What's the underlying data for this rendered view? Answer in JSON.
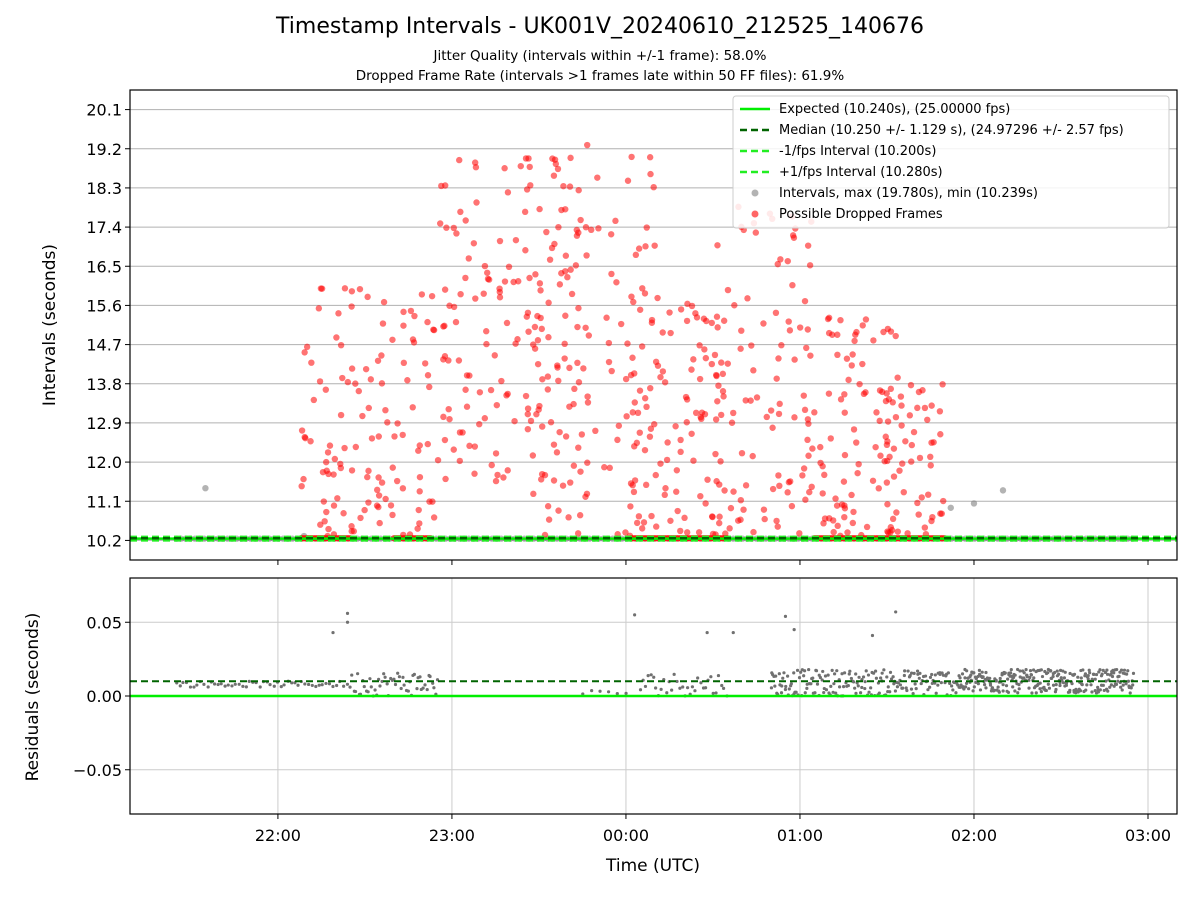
{
  "title": "Timestamp Intervals - UK001V_20240610_212525_140676",
  "subtitle_1": "Jitter Quality (intervals within +/-1 frame): 58.0%",
  "subtitle_2": "Dropped Frame Rate (intervals >1 frames late within 50 FF files): 61.9%",
  "colors": {
    "expected": "#00ee00",
    "median": "#006400",
    "interval_band": "#22ee22",
    "intervals": "#808080",
    "dropped": "#ff0000",
    "grid": "#b0b0b0"
  },
  "chart_data": [
    {
      "type": "scatter",
      "name": "intervals-panel",
      "ylabel": "Intervals (seconds)",
      "y_ticks": [
        "10.2",
        "11.1",
        "12.0",
        "12.9",
        "13.8",
        "14.7",
        "15.6",
        "16.5",
        "17.4",
        "18.3",
        "19.2",
        "20.1"
      ],
      "ylim": [
        9.75,
        20.55
      ],
      "xlim": [
        "21:09",
        "03:10"
      ],
      "grid": true,
      "legend_position": "top-right",
      "lines": [
        {
          "name": "Expected (10.240s), (25.00000 fps)",
          "y": 10.24,
          "style": "solid"
        },
        {
          "name": "Median (10.250 +/- 1.129 s), (24.97296 +/- 2.57 fps)",
          "y": 10.25,
          "style": "dashed"
        },
        {
          "name": "-1/fps Interval (10.200s)",
          "y": 10.2,
          "style": "dashed"
        },
        {
          "name": "+1/fps Interval (10.280s)",
          "y": 10.28,
          "style": "dashed"
        }
      ],
      "scatter_series": [
        {
          "name": "Intervals, max (19.780s), min (10.239s)",
          "x_range": [
            "21:25",
            "02:55"
          ],
          "y": 10.24,
          "outliers": [
            {
              "x": "21:35",
              "y": 11.4
            },
            {
              "x": "22:09",
              "y": 10.3
            },
            {
              "x": "01:52",
              "y": 10.95
            },
            {
              "x": "02:00",
              "y": 11.05
            },
            {
              "x": "02:10",
              "y": 11.35
            }
          ]
        },
        {
          "name": "Possible Dropped Frames",
          "clusters": [
            {
              "x_range": [
                "22:08",
                "22:54"
              ],
              "y_range": [
                10.3,
                16.0
              ]
            },
            {
              "x_range": [
                "22:55",
                "23:44"
              ],
              "y_range": [
                11.5,
                19.0
              ]
            },
            {
              "x_range": [
                "23:25",
                "00:10"
              ],
              "y_range": [
                10.3,
                19.4
              ]
            },
            {
              "x_range": [
                "00:01",
                "00:35"
              ],
              "y_range": [
                10.3,
                16.0
              ]
            },
            {
              "x_range": [
                "00:30",
                "01:05"
              ],
              "y_range": [
                10.3,
                17.9
              ]
            },
            {
              "x_range": [
                "01:00",
                "01:35"
              ],
              "y_range": [
                10.3,
                15.5
              ]
            },
            {
              "x_range": [
                "01:30",
                "01:50"
              ],
              "y_range": [
                10.3,
                14.0
              ]
            }
          ]
        }
      ]
    },
    {
      "type": "scatter",
      "name": "residuals-panel",
      "xlabel": "Time (UTC)",
      "ylabel": "Residuals (seconds)",
      "x_ticks": [
        "22:00",
        "23:00",
        "00:00",
        "01:00",
        "02:00",
        "03:00"
      ],
      "y_ticks": [
        "0.05",
        "0.00",
        "−0.05"
      ],
      "ylim": [
        -0.08,
        0.08
      ],
      "grid": true,
      "lines": [
        {
          "name": "Expected",
          "y": 0.0,
          "style": "solid"
        },
        {
          "name": "Median",
          "y": 0.01,
          "style": "dashed"
        }
      ],
      "scatter_series": [
        {
          "name": "Residuals",
          "y_range": [
            0.0,
            0.018
          ],
          "outliers": [
            {
              "x": "22:19",
              "y": 0.043
            },
            {
              "x": "22:24",
              "y": 0.056
            },
            {
              "x": "22:24",
              "y": 0.05
            },
            {
              "x": "00:03",
              "y": 0.055
            },
            {
              "x": "00:28",
              "y": 0.043
            },
            {
              "x": "00:37",
              "y": 0.043
            },
            {
              "x": "00:55",
              "y": 0.054
            },
            {
              "x": "00:58",
              "y": 0.045
            },
            {
              "x": "01:25",
              "y": 0.041
            },
            {
              "x": "01:33",
              "y": 0.057
            }
          ]
        }
      ]
    }
  ]
}
